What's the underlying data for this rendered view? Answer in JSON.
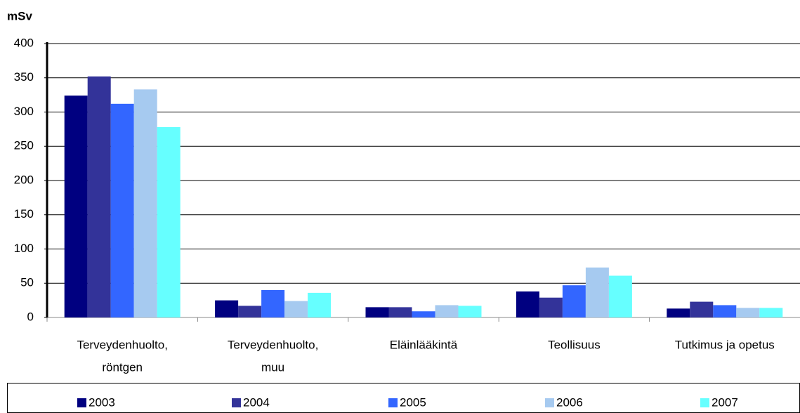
{
  "chart_data": {
    "type": "bar",
    "y_label": "mSv",
    "categories": [
      [
        "Terveydenhuolto,",
        "röntgen"
      ],
      [
        "Terveydenhuolto,",
        "muu"
      ],
      [
        "Eläinlääkintä"
      ],
      [
        "Teollisuus"
      ],
      [
        "Tutkimus ja opetus"
      ]
    ],
    "series": [
      {
        "name": "2003",
        "color": "#000080",
        "values": [
          324,
          25,
          15,
          38,
          13
        ]
      },
      {
        "name": "2004",
        "color": "#333399",
        "values": [
          352,
          17,
          15,
          29,
          23
        ]
      },
      {
        "name": "2005",
        "color": "#3366ff",
        "values": [
          312,
          40,
          9,
          47,
          18
        ]
      },
      {
        "name": "2006",
        "color": "#a6caf0",
        "values": [
          333,
          24,
          18,
          73,
          14
        ]
      },
      {
        "name": "2007",
        "color": "#66ffff",
        "values": [
          278,
          36,
          17,
          61,
          14
        ]
      }
    ],
    "ylim": [
      0,
      400
    ],
    "yticks": [
      0,
      50,
      100,
      150,
      200,
      250,
      300,
      350,
      400
    ],
    "grid": true,
    "legend": "bottom"
  }
}
